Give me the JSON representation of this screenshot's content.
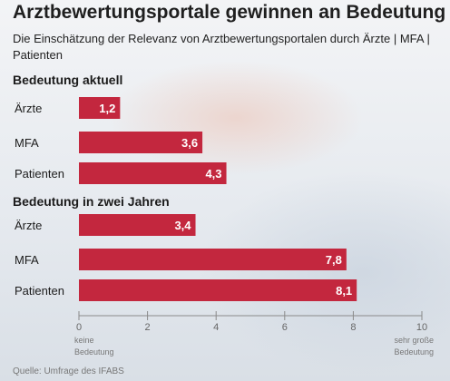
{
  "title": "Arztbewertungsportale gewinnen an Bedeutung",
  "subtitle": "Die Einschätzung der Relevanz von Arztbewertungsportalen durch Ärzte | MFA | Patienten",
  "source": "Quelle: Umfrage des IFABS",
  "colors": {
    "bar": "#c3273e",
    "bar_text": "#ffffff",
    "axis": "#8a8a8a"
  },
  "chart_data": {
    "type": "bar",
    "orientation": "horizontal",
    "groups": [
      {
        "name": "Bedeutung aktuell",
        "categories": [
          "Ärzte",
          "MFA",
          "Patienten"
        ],
        "values": [
          1.2,
          3.6,
          4.3
        ],
        "value_labels": [
          "1,2",
          "3,6",
          "4,3"
        ]
      },
      {
        "name": "Bedeutung in zwei Jahren",
        "categories": [
          "Ärzte",
          "MFA",
          "Patienten"
        ],
        "values": [
          3.4,
          7.8,
          8.1
        ],
        "value_labels": [
          "3,4",
          "7,8",
          "8,1"
        ]
      }
    ],
    "xlim": [
      0,
      10
    ],
    "xticks": [
      0,
      2,
      4,
      6,
      8,
      10
    ],
    "xtick_labels": [
      "0",
      "2",
      "4",
      "6",
      "8",
      "10"
    ],
    "axis_end_labels": {
      "min": [
        "keine",
        "Bedeutung"
      ],
      "max": [
        "sehr große",
        "Bedeutung"
      ]
    }
  }
}
